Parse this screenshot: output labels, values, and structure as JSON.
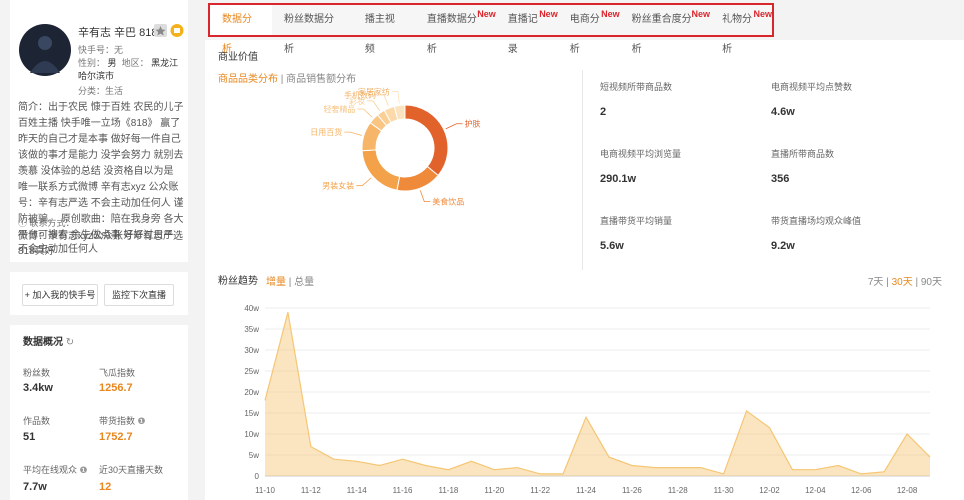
{
  "tabs": [
    {
      "label": "数据分析"
    },
    {
      "label": "粉丝数据分析"
    },
    {
      "label": "播主视频"
    },
    {
      "label": "直播数据分析",
      "badge": "New"
    },
    {
      "label": "直播记录",
      "badge": "New"
    },
    {
      "label": "电商分析",
      "badge": "New"
    },
    {
      "label": "粉丝重合度分析",
      "badge": "New"
    },
    {
      "label": "礼物分析",
      "badge": "New"
    }
  ],
  "profile": {
    "name": "辛有志 辛巴 818",
    "kuaishou_id": "快手号：无",
    "gender_label": "性别：",
    "gender": "男",
    "region_label": "地区：",
    "region": "黑龙江 哈尔滨市",
    "category": "分类：生活",
    "bio": "简介：出于农民 慷于百姓 农民的儿子 百姓主播 快手唯一立场《818》 赢了昨天的自己才是本事 做好每一件自己该做的事才是能力 没学会努力 就别去羡慕 没体验的总结 没资格自以为是 唯一联系方式微博 辛有志xyz 公众账号：辛有志严选 不会主动加任何人 谨防被骗。 原创歌曲：陪在我身旁 各大平台可搜索 余生做点事 好好过日子 818真好",
    "contact_title": "联系方式：",
    "contact": "微博：辛有志xyz公众账号辛有志严选不会主动加任何人"
  },
  "buttons": [
    "+ 加入我的快手号",
    "监控下次直播"
  ],
  "overview": {
    "title": "数据概况",
    "stats": [
      {
        "label": "粉丝数",
        "value": "3.4kw"
      },
      {
        "label": "飞瓜指数",
        "value": "1256.7"
      },
      {
        "label": "作品数",
        "value": "51"
      },
      {
        "label": "带货指数",
        "value": "1752.7"
      },
      {
        "label": "平均在线观众",
        "value": "7.7w"
      },
      {
        "label": "近30天直播天数",
        "value": "12"
      }
    ]
  },
  "business": {
    "title": "商业价值",
    "tabs": [
      "商品品类分布",
      "商品销售额分布"
    ],
    "stats": [
      {
        "label": "短视频所带商品数",
        "value": "2"
      },
      {
        "label": "电商视频平均点赞数",
        "value": "4.6w"
      },
      {
        "label": "电商视频平均浏览量",
        "value": "290.1w"
      },
      {
        "label": "直播所带商品数",
        "value": "356"
      },
      {
        "label": "直播带货平均销量",
        "value": "5.6w"
      },
      {
        "label": "带货直播场均观众峰值",
        "value": "9.2w"
      }
    ]
  },
  "chart_data": [
    {
      "type": "pie",
      "donut": true,
      "categories": [
        "护肤",
        "美食饮品",
        "男装女装",
        "日用百货",
        "轻奢精品",
        "彩妆",
        "手机数码",
        "家居家纺"
      ],
      "values": [
        36,
        17,
        21,
        11,
        4,
        3,
        4,
        4
      ],
      "colors": [
        "#e2622b",
        "#ef8a3b",
        "#f4a24a",
        "#f6b568",
        "#f8c582",
        "#f9cf96",
        "#fbd9a9",
        "#fce3bf"
      ]
    },
    {
      "type": "area",
      "title": "粉丝趋势",
      "modes": [
        "增量",
        "总量"
      ],
      "ranges": [
        "7天",
        "30天",
        "90天"
      ],
      "categories": [
        "11-10",
        null,
        "11-12",
        null,
        "11-14",
        null,
        "11-16",
        null,
        "11-18",
        null,
        "11-20",
        null,
        "11-22",
        null,
        "11-24",
        null,
        "11-26",
        null,
        "11-28",
        null,
        "11-30",
        null,
        "12-02",
        null,
        "12-04",
        null,
        "12-06",
        null,
        "12-08",
        null
      ],
      "values": [
        18,
        39,
        7,
        4,
        3.5,
        2.5,
        4,
        2.5,
        1.5,
        3.5,
        1.5,
        2,
        0.5,
        0.5,
        14,
        4.5,
        2.5,
        2,
        2,
        2,
        0.5,
        15.5,
        11.5,
        1.5,
        1.5,
        2.5,
        0.5,
        1,
        10,
        4.5
      ],
      "color": "#f5c674",
      "ylim": [
        0,
        40
      ],
      "yticks": [
        0,
        {
          "value": 5,
          "label": "5w"
        },
        {
          "value": 10,
          "label": "10w"
        },
        {
          "value": 15,
          "label": "15w"
        },
        {
          "value": 20,
          "label": "20w"
        },
        {
          "value": 25,
          "label": "25w"
        },
        {
          "value": 30,
          "label": "30w"
        },
        {
          "value": 35,
          "label": "35w"
        },
        {
          "value": 40,
          "label": "40w"
        }
      ],
      "grid": true
    }
  ]
}
